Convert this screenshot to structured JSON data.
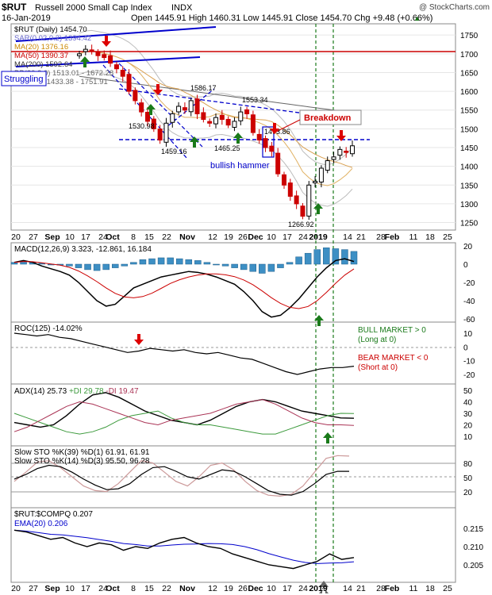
{
  "header": {
    "symbol": "$RUT",
    "name": "Russell 2000 Small Cap Index",
    "exchange": "INDX",
    "watermark": "@ StockCharts.com",
    "date": "16-Jan-2019",
    "ohlc": "Open 1445.91  High 1460.31  Low 1445.91  Close 1454.70  Chg +9.48 (+0.66%)",
    "chg_arrow": "▲"
  },
  "price_panel": {
    "legend": [
      {
        "text": "$RUT (Daily) 1454.70",
        "color": "#000000"
      },
      {
        "text": "SAR(0.02,0.2) 1394.42",
        "color": "#6666cc"
      },
      {
        "text": "MA(20) 1376.16",
        "color": "#cc8800"
      },
      {
        "text": "MA(50) 1390.37",
        "color": "#cc0000"
      },
      {
        "text": "MA(200) 1592.64",
        "color": "#333333"
      },
      {
        "text": "BB(20,2.0) 1513.01 - 1672.28",
        "color": "#666666"
      },
      {
        "text": "(20,10.0) 1433.38 - 1751.91",
        "color": "#666666"
      }
    ],
    "y_ticks": [
      "1750",
      "1700",
      "1650",
      "1600",
      "1550",
      "1500",
      "1450",
      "1400",
      "1350",
      "1300",
      "1250"
    ],
    "annotations": {
      "struggling": "Struggling",
      "breakdown": "Breakdown",
      "bullish_hammer": "bullish hammer",
      "l1586": "1586.17",
      "l1553": "1553.34",
      "l1530": "1530.98",
      "l1459": "1459.16",
      "l1465": "1465.25",
      "l1266": "1266.92",
      "l1473": "1473.86"
    }
  },
  "x_axis": {
    "labels": [
      "20",
      "27",
      "Sep",
      "10",
      "17",
      "24",
      "Oct",
      "8",
      "15",
      "22",
      "Nov",
      "12",
      "19",
      "26",
      "Dec",
      "10",
      "17",
      "24",
      "2019",
      "14",
      "21",
      "28",
      "Feb",
      "11",
      "18",
      "25"
    ]
  },
  "macd": {
    "label": "MACD(12,26,9)",
    "values": "3.323, -12.861, 16.184",
    "y_ticks": [
      "20",
      "0",
      "-20",
      "-40",
      "-60"
    ]
  },
  "roc": {
    "label": "ROC(125) -14.02%",
    "y_ticks": [
      "10",
      "0",
      "-10",
      "-20"
    ],
    "bull_text": "BULL MARKET > 0",
    "bull_sub": "(Long at 0)",
    "bear_text": "BEAR MARKET < 0",
    "bear_sub": "(Short at 0)"
  },
  "adx": {
    "label": "ADX(14) 25.73",
    "plus_di": "+DI 29.78",
    "minus_di": "-DI 19.47",
    "y_ticks": [
      "50",
      "40",
      "30",
      "20",
      "10"
    ]
  },
  "stoch": {
    "label1": "Slow STO %K(39) %D(1) 61.91, 61.91",
    "label2": "Slow STO %K(14) %D(3) 95.50, 96.28",
    "y_ticks": [
      "80",
      "50",
      "20"
    ]
  },
  "ratio": {
    "label": "$RUT:$COMPQ 0.207",
    "ema_label": "EMA(20) 0.206",
    "y_ticks": [
      "0.215",
      "0.210",
      "0.205"
    ]
  },
  "colors": {
    "up_candle": "#000000",
    "down_candle": "#cc0000",
    "bull_arrow": "#1a7a1a",
    "bear_arrow": "#dd0000",
    "trend_blue": "#0000cc",
    "guide_green": "#1a7a1a",
    "macd_hist": "#3d8fc4",
    "adx_plus": "#3c9a3c",
    "adx_minus": "#aa3355"
  },
  "chart_data": {
    "type": "line",
    "title": "$RUT Russell 2000 Small Cap Index INDX (Daily)",
    "close_series_approx": [
      1700,
      1712,
      1710,
      1695,
      1690,
      1675,
      1660,
      1640,
      1600,
      1575,
      1545,
      1520,
      1500,
      1470,
      1515,
      1540,
      1560,
      1550,
      1575,
      1540,
      1525,
      1515,
      1530,
      1525,
      1510,
      1520,
      1545,
      1540,
      1490,
      1470,
      1450,
      1440,
      1380,
      1350,
      1320,
      1300,
      1266.92,
      1350,
      1360,
      1395,
      1415,
      1425,
      1445,
      1437,
      1454.7
    ],
    "ylim": [
      1230,
      1780
    ],
    "levels": {
      "horizontal_support": 1468,
      "resistance_red": 1702
    }
  }
}
